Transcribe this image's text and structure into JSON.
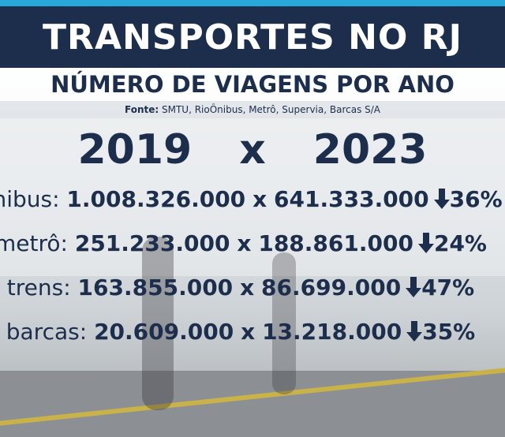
{
  "header": {
    "title": "TRANSPORTES NO RJ",
    "subtitle": "NÚMERO DE VIAGENS POR ANO"
  },
  "source": {
    "label": "Fonte:",
    "text": "SMTU, RioÔnibus, Metrô, Supervia, Barcas S/A"
  },
  "comparison": {
    "year_a": "2019",
    "separator": "x",
    "year_b": "2023"
  },
  "rows": [
    {
      "label": "ônibus:",
      "value_2019": "1.008.326.000",
      "separator": "x",
      "value_2023": "641.333.000",
      "change": "36%"
    },
    {
      "label": "metrô:",
      "value_2019": "251.233.000",
      "separator": "x",
      "value_2023": "188.861.000",
      "change": "24%"
    },
    {
      "label": "trens:",
      "value_2019": "163.855.000",
      "separator": "x",
      "value_2023": "86.699.000",
      "change": "47%"
    },
    {
      "label": "barcas:",
      "value_2019": "20.609.000",
      "separator": "x",
      "value_2023": "13.218.000",
      "change": "35%"
    }
  ]
}
